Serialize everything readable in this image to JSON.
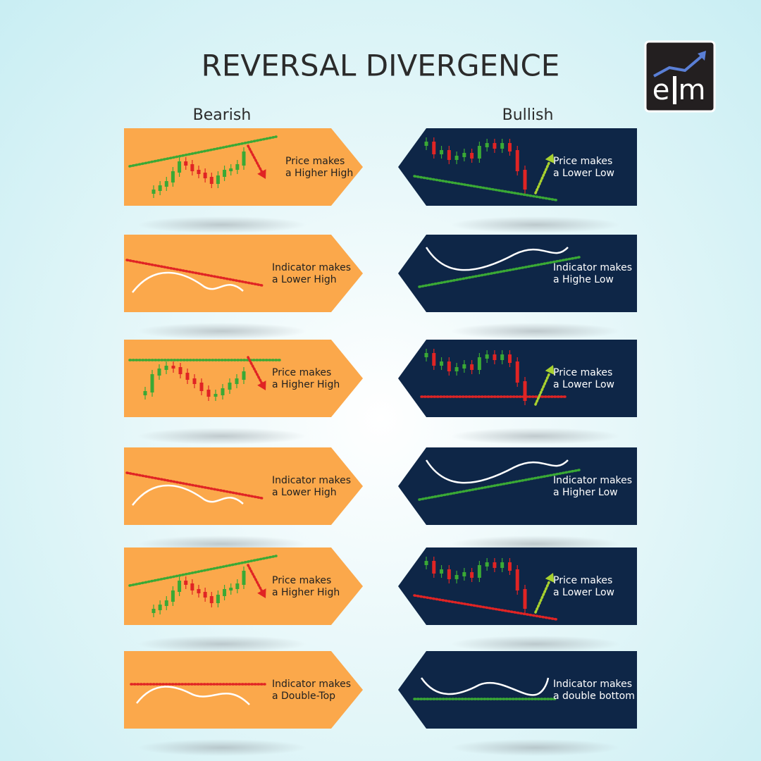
{
  "header": {
    "title": "REVERSAL DIVERGENCE",
    "logo": {
      "left": "e",
      "right": "m"
    }
  },
  "columns": {
    "bearish": "Bearish",
    "bullish": "Bullish"
  },
  "rows": [
    {
      "bearish": [
        "Price makes",
        "a Higher High"
      ],
      "bullish": [
        "Price makes",
        "a Lower Low"
      ]
    },
    {
      "bearish": [
        "Indicator makes",
        "a Lower High"
      ],
      "bullish": [
        "Indicator makes",
        "a Highe Low"
      ]
    },
    {
      "bearish": [
        "Price makes",
        "a Higher High"
      ],
      "bullish": [
        "Price makes",
        "a Lower Low"
      ]
    },
    {
      "bearish": [
        "Indicator makes",
        "a Lower High"
      ],
      "bullish": [
        "Indicator makes",
        "a Higher Low"
      ]
    },
    {
      "bearish": [
        "Price makes",
        "a Higher High"
      ],
      "bullish": [
        "Price makes",
        "a Lower Low"
      ]
    },
    {
      "bearish": [
        "Indicator makes",
        "a Double-Top"
      ],
      "bullish": [
        "Indicator makes",
        "a double bottom"
      ]
    }
  ]
}
